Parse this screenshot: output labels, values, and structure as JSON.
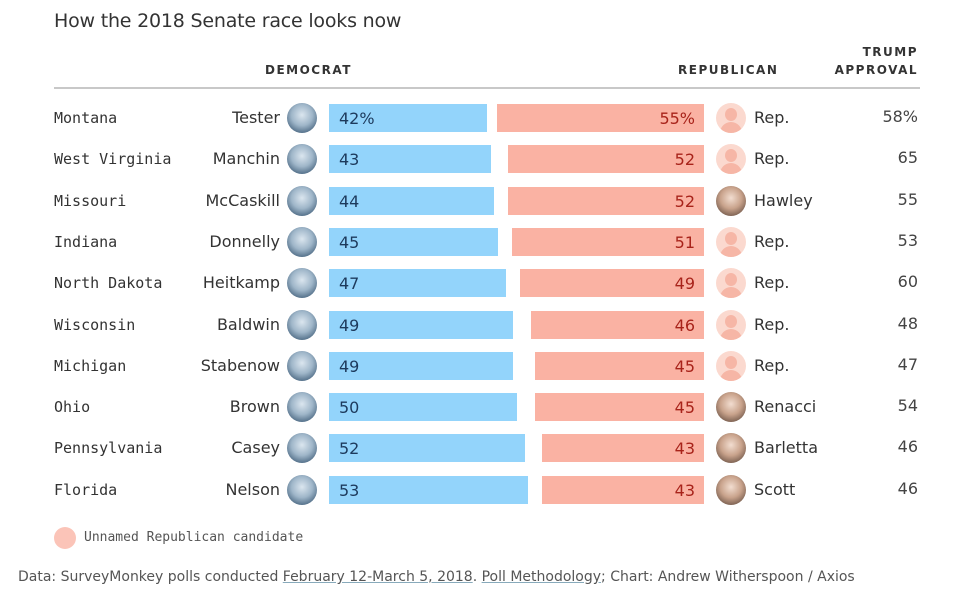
{
  "chart_data": {
    "type": "bar",
    "title": "How the 2018 Senate race looks now",
    "column_headers": {
      "democrat": "DEMOCRAT",
      "republican": "REPUBLICAN",
      "trump_approval_line1": "TRUMP",
      "trump_approval_line2": "APPROVAL"
    },
    "unit_suffix_first_row": "%",
    "categories": [
      "Montana",
      "West Virginia",
      "Missouri",
      "Indiana",
      "North Dakota",
      "Wisconsin",
      "Michigan",
      "Ohio",
      "Pennsylvania",
      "Florida"
    ],
    "series": [
      {
        "name": "Democrat",
        "color": "#93d4fb",
        "values": [
          42,
          43,
          44,
          45,
          47,
          49,
          49,
          50,
          52,
          53
        ]
      },
      {
        "name": "Republican",
        "color": "#fab2a3",
        "values": [
          55,
          52,
          52,
          51,
          49,
          46,
          45,
          45,
          43,
          43
        ]
      },
      {
        "name": "Trump approval",
        "values": [
          58,
          65,
          55,
          53,
          60,
          48,
          47,
          54,
          46,
          46
        ]
      }
    ],
    "rows": [
      {
        "state": "Montana",
        "dem_candidate": "Tester",
        "dem": 42,
        "dem_label": "42%",
        "rep_candidate": "Rep.",
        "rep_unnamed": true,
        "rep": 55,
        "rep_label": "55%",
        "approval": "58%"
      },
      {
        "state": "West Virginia",
        "dem_candidate": "Manchin",
        "dem": 43,
        "dem_label": "43",
        "rep_candidate": "Rep.",
        "rep_unnamed": true,
        "rep": 52,
        "rep_label": "52",
        "approval": "65"
      },
      {
        "state": "Missouri",
        "dem_candidate": "McCaskill",
        "dem": 44,
        "dem_label": "44",
        "rep_candidate": "Hawley",
        "rep_unnamed": false,
        "rep": 52,
        "rep_label": "52",
        "approval": "55"
      },
      {
        "state": "Indiana",
        "dem_candidate": "Donnelly",
        "dem": 45,
        "dem_label": "45",
        "rep_candidate": "Rep.",
        "rep_unnamed": true,
        "rep": 51,
        "rep_label": "51",
        "approval": "53"
      },
      {
        "state": "North Dakota",
        "dem_candidate": "Heitkamp",
        "dem": 47,
        "dem_label": "47",
        "rep_candidate": "Rep.",
        "rep_unnamed": true,
        "rep": 49,
        "rep_label": "49",
        "approval": "60"
      },
      {
        "state": "Wisconsin",
        "dem_candidate": "Baldwin",
        "dem": 49,
        "dem_label": "49",
        "rep_candidate": "Rep.",
        "rep_unnamed": true,
        "rep": 46,
        "rep_label": "46",
        "approval": "48"
      },
      {
        "state": "Michigan",
        "dem_candidate": "Stabenow",
        "dem": 49,
        "dem_label": "49",
        "rep_candidate": "Rep.",
        "rep_unnamed": true,
        "rep": 45,
        "rep_label": "45",
        "approval": "47"
      },
      {
        "state": "Ohio",
        "dem_candidate": "Brown",
        "dem": 50,
        "dem_label": "50",
        "rep_candidate": "Renacci",
        "rep_unnamed": false,
        "rep": 45,
        "rep_label": "45",
        "approval": "54"
      },
      {
        "state": "Pennsylvania",
        "dem_candidate": "Casey",
        "dem": 52,
        "dem_label": "52",
        "rep_candidate": "Barletta",
        "rep_unnamed": false,
        "rep": 43,
        "rep_label": "43",
        "approval": "46"
      },
      {
        "state": "Florida",
        "dem_candidate": "Nelson",
        "dem": 53,
        "dem_label": "53",
        "rep_candidate": "Scott",
        "rep_unnamed": false,
        "rep": 43,
        "rep_label": "43",
        "approval": "46"
      }
    ],
    "legend": {
      "entries": [
        {
          "icon": "unnamed-candidate-icon",
          "label": "Unnamed Republican candidate"
        }
      ],
      "placement": "bottom-left"
    },
    "xlabel": "",
    "ylabel": "",
    "grid": false
  },
  "footer": {
    "prefix": "Data: SurveyMonkey polls conducted ",
    "date_link": "February 12-March 5, 2018",
    "sep": ". ",
    "methodology_link": "Poll Methodology",
    "suffix": "; Chart: Andrew Witherspoon / Axios"
  },
  "colors": {
    "democrat": "#93d4fb",
    "republican": "#fab2a3",
    "dem_text": "#1d3a5c",
    "rep_text": "#a8231a"
  }
}
